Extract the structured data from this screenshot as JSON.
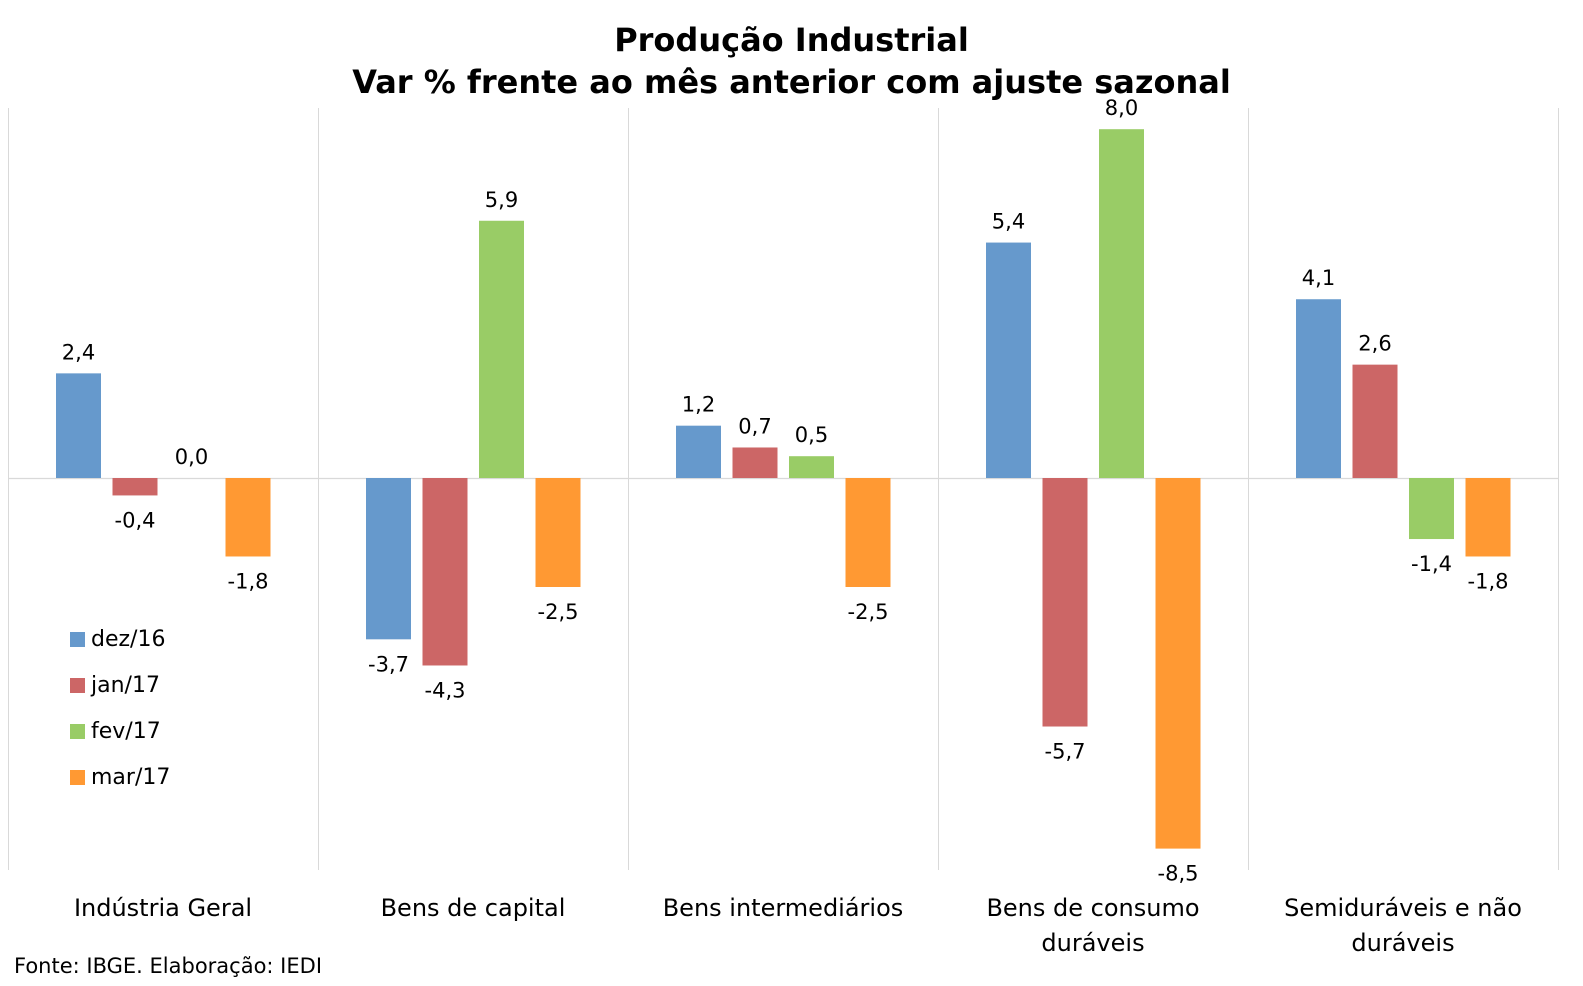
{
  "chart_data": {
    "type": "bar",
    "title": "Produção Industrial",
    "subtitle": "Var % frente ao mês anterior com ajuste sazonal",
    "categories": [
      [
        "Indústria Geral"
      ],
      [
        "Bens de capital"
      ],
      [
        "Bens intermediários"
      ],
      [
        "Bens de consumo",
        "duráveis"
      ],
      [
        "Semiduráveis e não",
        "duráveis"
      ]
    ],
    "series": [
      {
        "name": "dez/16",
        "color": "#6699CC",
        "values": [
          2.4,
          -3.7,
          1.2,
          5.4,
          4.1
        ],
        "labels": [
          "2,4",
          "-3,7",
          "1,2",
          "5,4",
          "4,1"
        ]
      },
      {
        "name": "jan/17",
        "color": "#CC6666",
        "values": [
          -0.4,
          -4.3,
          0.7,
          -5.7,
          2.6
        ],
        "labels": [
          "-0,4",
          "-4,3",
          "0,7",
          "-5,7",
          "2,6"
        ]
      },
      {
        "name": "fev/17",
        "color": "#99CC66",
        "values": [
          0.0,
          5.9,
          0.5,
          8.0,
          -1.4
        ],
        "labels": [
          "0,0",
          "5,9",
          "0,5",
          "8,0",
          "-1,4"
        ]
      },
      {
        "name": "mar/17",
        "color": "#FF9933",
        "values": [
          -1.8,
          -2.5,
          -2.5,
          -8.5,
          -1.8
        ],
        "labels": [
          "-1,8",
          "-2,5",
          "-2,5",
          "-8,5",
          "-1,8"
        ]
      }
    ],
    "ylim": [
      -9.5,
      9.0
    ],
    "grid": false,
    "legend": "bottom-left"
  },
  "source": "Fonte: IBGE. Elaboração: IEDI"
}
